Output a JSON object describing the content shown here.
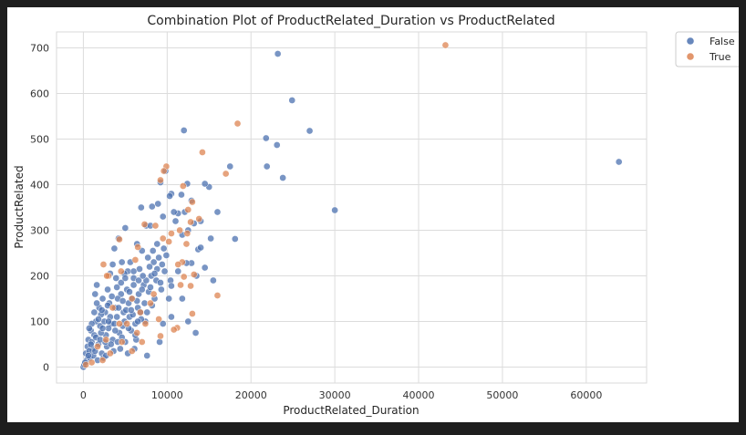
{
  "chart_data": {
    "type": "scatter",
    "title": "Combination Plot of ProductRelated_Duration vs ProductRelated",
    "xlabel": "ProductRelated_Duration",
    "ylabel": "ProductRelated",
    "xlim": [
      -3200,
      67200
    ],
    "ylim": [
      -35,
      735
    ],
    "x_ticks": [
      0,
      10000,
      20000,
      30000,
      40000,
      50000,
      60000
    ],
    "x_tick_labels": [
      "0",
      "10000",
      "20000",
      "30000",
      "40000",
      "50000",
      "60000"
    ],
    "y_ticks": [
      0,
      100,
      200,
      300,
      400,
      500,
      600,
      700
    ],
    "y_tick_labels": [
      "0",
      "100",
      "200",
      "300",
      "400",
      "500",
      "600",
      "700"
    ],
    "grid": true,
    "legend_placement": "outside-top-right",
    "series": [
      {
        "name": "False",
        "color": "#4c72b0",
        "points": [
          [
            23200,
            687
          ],
          [
            24900,
            585
          ],
          [
            27000,
            518
          ],
          [
            21800,
            502
          ],
          [
            23100,
            487
          ],
          [
            12000,
            519
          ],
          [
            17500,
            440
          ],
          [
            21900,
            440
          ],
          [
            23800,
            415
          ],
          [
            30000,
            344
          ],
          [
            63900,
            450
          ],
          [
            15000,
            395
          ],
          [
            14500,
            402
          ],
          [
            12400,
            402
          ],
          [
            10500,
            380
          ],
          [
            12900,
            365
          ],
          [
            11700,
            378
          ],
          [
            16000,
            340
          ],
          [
            18100,
            281
          ],
          [
            13700,
            258
          ],
          [
            15200,
            282
          ],
          [
            14000,
            262
          ],
          [
            12100,
            340
          ],
          [
            11300,
            337
          ],
          [
            10800,
            340
          ],
          [
            9800,
            430
          ],
          [
            9200,
            405
          ],
          [
            10300,
            375
          ],
          [
            8900,
            358
          ],
          [
            8200,
            352
          ],
          [
            6900,
            350
          ],
          [
            7500,
            310
          ],
          [
            8000,
            310
          ],
          [
            9500,
            330
          ],
          [
            11000,
            320
          ],
          [
            12500,
            300
          ],
          [
            11800,
            290
          ],
          [
            13200,
            315
          ],
          [
            14000,
            320
          ],
          [
            5000,
            305
          ],
          [
            4200,
            282
          ],
          [
            3700,
            260
          ],
          [
            6400,
            270
          ],
          [
            7000,
            255
          ],
          [
            8800,
            270
          ],
          [
            9600,
            260
          ],
          [
            14500,
            218
          ],
          [
            15500,
            190
          ],
          [
            13500,
            200
          ],
          [
            12900,
            228
          ],
          [
            12300,
            228
          ],
          [
            11300,
            210
          ],
          [
            10400,
            190
          ],
          [
            9700,
            210
          ],
          [
            8400,
            230
          ],
          [
            6000,
            195
          ],
          [
            5300,
            210
          ],
          [
            4600,
            230
          ],
          [
            3500,
            225
          ],
          [
            3200,
            205
          ],
          [
            1600,
            180
          ],
          [
            1400,
            160
          ],
          [
            2300,
            150
          ],
          [
            2900,
            170
          ],
          [
            10500,
            178
          ],
          [
            10200,
            150
          ],
          [
            11800,
            150
          ],
          [
            12500,
            100
          ],
          [
            13400,
            75
          ],
          [
            10500,
            110
          ],
          [
            9500,
            95
          ],
          [
            9100,
            55
          ],
          [
            7600,
            25
          ],
          [
            1800,
            50
          ],
          [
            1500,
            100
          ],
          [
            900,
            80
          ],
          [
            600,
            60
          ],
          [
            300,
            30
          ],
          [
            400,
            15
          ],
          [
            0,
            0
          ],
          [
            100,
            5
          ],
          [
            200,
            10
          ],
          [
            2600,
            120
          ],
          [
            3100,
            140
          ],
          [
            3800,
            130
          ],
          [
            4500,
            160
          ],
          [
            5200,
            170
          ],
          [
            5800,
            150
          ],
          [
            6500,
            130
          ],
          [
            7200,
            180
          ],
          [
            7800,
            165
          ],
          [
            8500,
            150
          ],
          [
            2000,
            90
          ],
          [
            2700,
            70
          ],
          [
            3300,
            95
          ],
          [
            4000,
            110
          ],
          [
            4700,
            90
          ],
          [
            5500,
            110
          ],
          [
            6200,
            95
          ],
          [
            6800,
            120
          ],
          [
            7400,
            100
          ],
          [
            1100,
            40
          ],
          [
            1300,
            70
          ],
          [
            2200,
            30
          ],
          [
            2800,
            45
          ],
          [
            3500,
            60
          ],
          [
            4300,
            75
          ],
          [
            5000,
            55
          ],
          [
            5700,
            80
          ],
          [
            6300,
            60
          ],
          [
            800,
            20
          ],
          [
            1900,
            130
          ],
          [
            2500,
            100
          ],
          [
            3000,
            85
          ],
          [
            4100,
            150
          ],
          [
            4800,
            120
          ],
          [
            5400,
            140
          ],
          [
            6000,
            180
          ],
          [
            6600,
            160
          ],
          [
            7300,
            140
          ],
          [
            8100,
            200
          ],
          [
            8700,
            190
          ],
          [
            9300,
            170
          ],
          [
            500,
            45
          ],
          [
            700,
            35
          ],
          [
            1200,
            25
          ],
          [
            1700,
            15
          ],
          [
            2400,
            20
          ],
          [
            3600,
            35
          ],
          [
            4400,
            40
          ],
          [
            5300,
            30
          ],
          [
            6100,
            40
          ],
          [
            3900,
            195
          ],
          [
            4900,
            205
          ],
          [
            5600,
            230
          ],
          [
            6700,
            215
          ],
          [
            7700,
            240
          ],
          [
            8300,
            255
          ],
          [
            9000,
            240
          ],
          [
            2100,
            115
          ],
          [
            1000,
            55
          ],
          [
            1500,
            65
          ],
          [
            2100,
            75
          ],
          [
            2600,
            55
          ],
          [
            3200,
            110
          ],
          [
            3700,
            95
          ],
          [
            4200,
            130
          ],
          [
            4700,
            145
          ],
          [
            5100,
            125
          ],
          [
            5900,
            115
          ],
          [
            6400,
            145
          ],
          [
            7000,
            170
          ],
          [
            7500,
            190
          ],
          [
            8000,
            175
          ],
          [
            8800,
            215
          ],
          [
            9400,
            225
          ],
          [
            9900,
            245
          ],
          [
            1300,
            120
          ],
          [
            1800,
            105
          ],
          [
            2300,
            85
          ],
          [
            2900,
            135
          ],
          [
            3400,
            155
          ],
          [
            4000,
            175
          ],
          [
            4500,
            185
          ],
          [
            5000,
            195
          ],
          [
            5500,
            165
          ],
          [
            6000,
            210
          ],
          [
            6600,
            190
          ],
          [
            7100,
            200
          ],
          [
            7900,
            220
          ],
          [
            8500,
            205
          ],
          [
            1000,
            95
          ],
          [
            700,
            85
          ],
          [
            1600,
            140
          ],
          [
            2200,
            125
          ],
          [
            3000,
            100
          ],
          [
            3800,
            80
          ],
          [
            4600,
            65
          ],
          [
            5400,
            85
          ],
          [
            6200,
            70
          ],
          [
            6900,
            105
          ],
          [
            7600,
            120
          ],
          [
            8200,
            135
          ],
          [
            9200,
            185
          ],
          [
            600,
            25
          ],
          [
            900,
            50
          ],
          [
            1400,
            35
          ],
          [
            2000,
            60
          ],
          [
            2700,
            25
          ],
          [
            3300,
            50
          ],
          [
            4100,
            55
          ],
          [
            4900,
            100
          ],
          [
            5700,
            125
          ],
          [
            6500,
            100
          ]
        ]
      },
      {
        "name": "True",
        "color": "#dd8452",
        "points": [
          [
            43200,
            706
          ],
          [
            18400,
            534
          ],
          [
            14200,
            471
          ],
          [
            17000,
            424
          ],
          [
            9900,
            440
          ],
          [
            9600,
            430
          ],
          [
            9200,
            410
          ],
          [
            11900,
            397
          ],
          [
            13000,
            362
          ],
          [
            12500,
            345
          ],
          [
            13800,
            325
          ],
          [
            12800,
            318
          ],
          [
            11500,
            300
          ],
          [
            10500,
            293
          ],
          [
            12400,
            293
          ],
          [
            12300,
            270
          ],
          [
            10200,
            275
          ],
          [
            9500,
            282
          ],
          [
            8600,
            310
          ],
          [
            7300,
            313
          ],
          [
            6500,
            263
          ],
          [
            6200,
            235
          ],
          [
            4300,
            280
          ],
          [
            4500,
            210
          ],
          [
            3000,
            200
          ],
          [
            2800,
            200
          ],
          [
            2400,
            225
          ],
          [
            11800,
            230
          ],
          [
            11300,
            225
          ],
          [
            12000,
            198
          ],
          [
            13200,
            203
          ],
          [
            12800,
            178
          ],
          [
            11600,
            180
          ],
          [
            16000,
            157
          ],
          [
            13000,
            117
          ],
          [
            11200,
            86
          ],
          [
            10800,
            82
          ],
          [
            9200,
            68
          ],
          [
            5800,
            150
          ],
          [
            6800,
            120
          ],
          [
            7400,
            95
          ],
          [
            8000,
            140
          ],
          [
            3500,
            130
          ],
          [
            4300,
            95
          ],
          [
            2700,
            60
          ],
          [
            3200,
            30
          ],
          [
            2300,
            15
          ],
          [
            1000,
            10
          ],
          [
            300,
            5
          ],
          [
            4600,
            55
          ],
          [
            5800,
            35
          ],
          [
            5200,
            95
          ],
          [
            6400,
            75
          ],
          [
            8400,
            160
          ],
          [
            9000,
            105
          ],
          [
            7000,
            55
          ],
          [
            1700,
            45
          ]
        ]
      }
    ]
  }
}
